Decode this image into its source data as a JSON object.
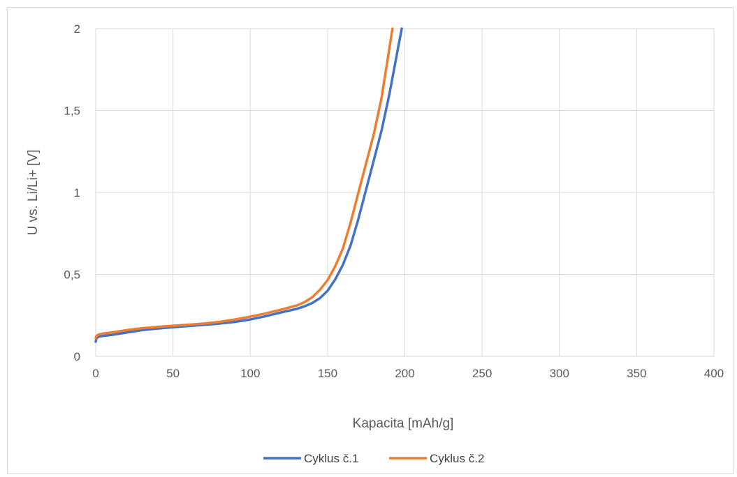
{
  "chart_data": {
    "type": "line",
    "title": "",
    "xlabel": "Kapacita [mAh/g]",
    "ylabel": "U vs. Li/Li+  [V]",
    "xlim": [
      0,
      400
    ],
    "ylim": [
      0,
      2
    ],
    "xticks": [
      0,
      50,
      100,
      150,
      200,
      250,
      300,
      350,
      400
    ],
    "yticks": [
      0,
      0.5,
      1,
      1.5,
      2
    ],
    "xtick_labels": [
      "0",
      "50",
      "100",
      "150",
      "200",
      "250",
      "300",
      "350",
      "400"
    ],
    "ytick_labels": [
      "0",
      "0,5",
      "1",
      "1,5",
      "2"
    ],
    "grid": true,
    "legend_position": "bottom",
    "series": [
      {
        "name": "Cyklus č.1",
        "color": "#4472c4",
        "x": [
          0,
          0.5,
          2,
          5,
          10,
          20,
          30,
          40,
          50,
          60,
          70,
          80,
          90,
          100,
          110,
          120,
          130,
          135,
          140,
          145,
          150,
          155,
          160,
          165,
          170,
          175,
          180,
          185,
          190,
          193,
          196,
          198
        ],
        "y": [
          0.09,
          0.11,
          0.12,
          0.125,
          0.13,
          0.145,
          0.16,
          0.17,
          0.178,
          0.185,
          0.192,
          0.2,
          0.21,
          0.225,
          0.245,
          0.268,
          0.29,
          0.305,
          0.325,
          0.355,
          0.4,
          0.47,
          0.56,
          0.68,
          0.84,
          1.02,
          1.2,
          1.38,
          1.6,
          1.75,
          1.9,
          2.0
        ]
      },
      {
        "name": "Cyklus č.2",
        "color": "#ed7d31",
        "x": [
          0,
          0.5,
          2,
          5,
          10,
          20,
          30,
          40,
          50,
          60,
          70,
          80,
          90,
          100,
          110,
          120,
          130,
          135,
          140,
          145,
          150,
          155,
          160,
          165,
          170,
          175,
          180,
          185,
          190,
          192
        ],
        "y": [
          0.11,
          0.125,
          0.133,
          0.14,
          0.145,
          0.16,
          0.172,
          0.18,
          0.187,
          0.193,
          0.2,
          0.21,
          0.225,
          0.242,
          0.262,
          0.285,
          0.31,
          0.33,
          0.36,
          0.405,
          0.465,
          0.55,
          0.66,
          0.82,
          1.0,
          1.18,
          1.36,
          1.58,
          1.88,
          2.0
        ]
      }
    ]
  }
}
